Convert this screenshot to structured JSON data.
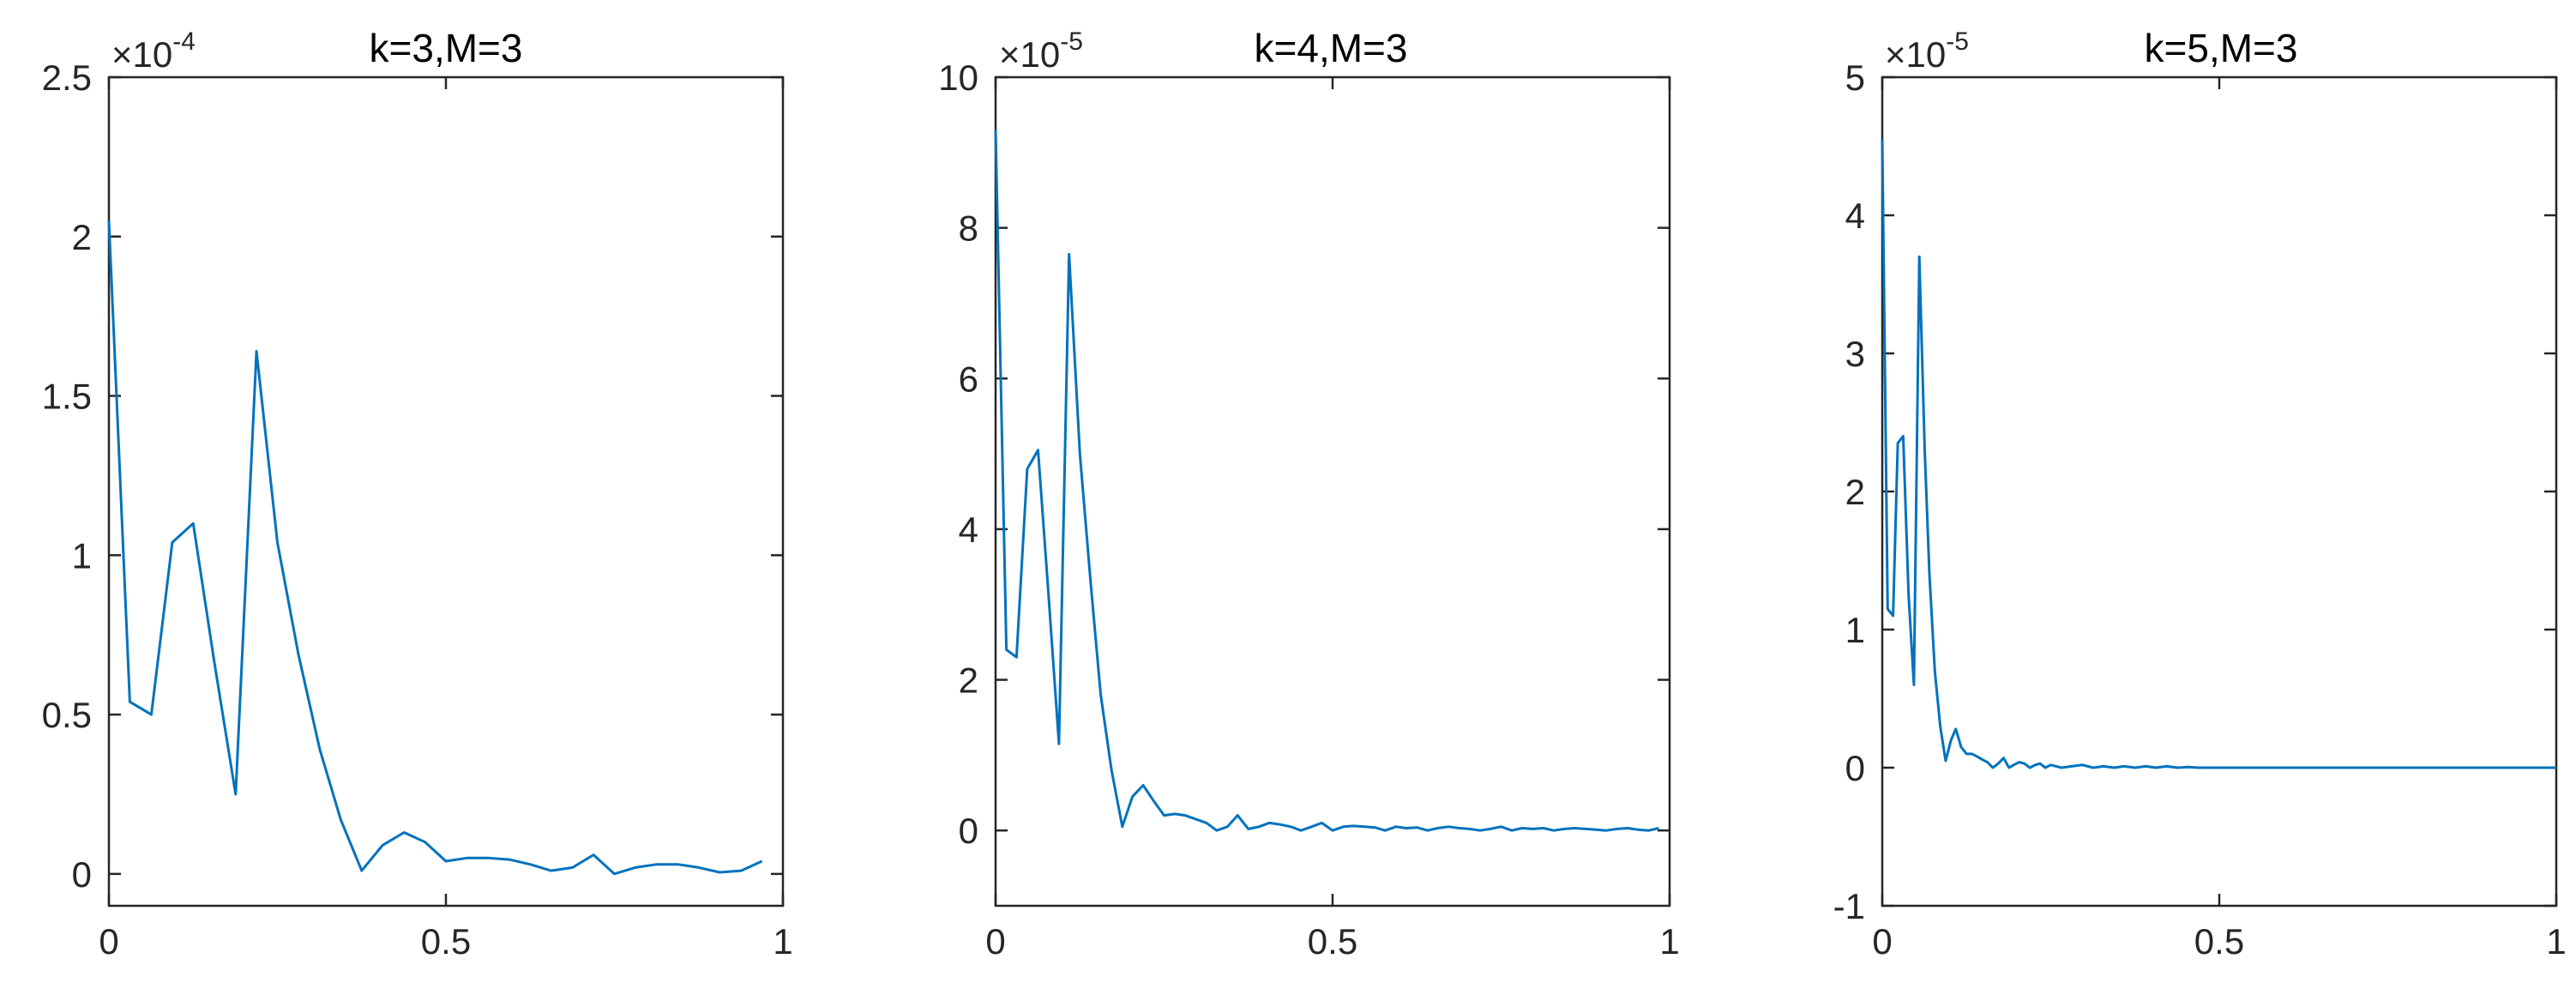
{
  "figure": {
    "background": "#ffffff",
    "axis_color": "#262626",
    "line_color": "#0072bd"
  },
  "chart_data": [
    {
      "type": "line",
      "title": "k=3,M=3",
      "exponent_label": "×10^-4",
      "exponent_base": "×10",
      "exponent_power": "-4",
      "xlim": [
        0,
        1
      ],
      "ylim": [
        -0.1,
        2.5
      ],
      "scale": 0.0001,
      "xticks": [
        0,
        0.5,
        1
      ],
      "xtick_labels": [
        "0",
        "0.5",
        "1"
      ],
      "yticks": [
        0,
        0.5,
        1,
        1.5,
        2,
        2.5
      ],
      "ytick_labels": [
        "0",
        "0.5",
        "1",
        "1.5",
        "2",
        "2.5"
      ],
      "grid": false,
      "legend": "none",
      "series": [
        {
          "x": [
            0,
            0.031,
            0.063,
            0.094,
            0.125,
            0.156,
            0.188,
            0.219,
            0.25,
            0.281,
            0.313,
            0.344,
            0.375,
            0.406,
            0.438,
            0.469,
            0.5,
            0.531,
            0.563,
            0.594,
            0.625,
            0.656,
            0.688,
            0.719,
            0.75,
            0.781,
            0.813,
            0.844,
            0.875,
            0.906,
            0.938,
            0.969
          ],
          "y": [
            2.05,
            0.54,
            0.5,
            1.04,
            1.1,
            0.67,
            0.25,
            1.64,
            1.04,
            0.69,
            0.39,
            0.17,
            0.01,
            0.09,
            0.13,
            0.1,
            0.04,
            0.05,
            0.05,
            0.045,
            0.03,
            0.01,
            0.02,
            0.06,
            0.0,
            0.02,
            0.03,
            0.03,
            0.02,
            0.005,
            0.01,
            0.04
          ]
        }
      ]
    },
    {
      "type": "line",
      "title": "k=4,M=3",
      "exponent_label": "×10^-5",
      "exponent_base": "×10",
      "exponent_power": "-5",
      "xlim": [
        0,
        1
      ],
      "ylim": [
        -1,
        10
      ],
      "scale": 1e-05,
      "xticks": [
        0,
        0.5,
        1
      ],
      "xtick_labels": [
        "0",
        "0.5",
        "1"
      ],
      "yticks": [
        0,
        2,
        4,
        6,
        8,
        10
      ],
      "ytick_labels": [
        "0",
        "2",
        "4",
        "6",
        "8",
        "10"
      ],
      "grid": false,
      "legend": "none",
      "series": [
        {
          "x": [
            0,
            0.016,
            0.031,
            0.047,
            0.063,
            0.078,
            0.094,
            0.109,
            0.125,
            0.141,
            0.156,
            0.172,
            0.188,
            0.203,
            0.219,
            0.234,
            0.25,
            0.266,
            0.281,
            0.297,
            0.313,
            0.328,
            0.344,
            0.359,
            0.375,
            0.391,
            0.406,
            0.422,
            0.438,
            0.453,
            0.469,
            0.484,
            0.5,
            0.516,
            0.531,
            0.547,
            0.563,
            0.578,
            0.594,
            0.609,
            0.625,
            0.641,
            0.656,
            0.672,
            0.688,
            0.703,
            0.719,
            0.734,
            0.75,
            0.766,
            0.781,
            0.797,
            0.813,
            0.828,
            0.844,
            0.859,
            0.875,
            0.891,
            0.906,
            0.922,
            0.938,
            0.953,
            0.969,
            0.984
          ],
          "y": [
            9.3,
            2.4,
            2.3,
            4.8,
            5.05,
            3.2,
            1.15,
            7.65,
            5.0,
            3.3,
            1.8,
            0.8,
            0.05,
            0.45,
            0.6,
            0.4,
            0.2,
            0.22,
            0.2,
            0.15,
            0.1,
            0.0,
            0.05,
            0.2,
            0.02,
            0.05,
            0.1,
            0.08,
            0.05,
            0.0,
            0.05,
            0.1,
            0.0,
            0.05,
            0.06,
            0.05,
            0.04,
            0.0,
            0.05,
            0.03,
            0.04,
            0.0,
            0.03,
            0.05,
            0.03,
            0.02,
            0.0,
            0.02,
            0.05,
            0.0,
            0.03,
            0.02,
            0.03,
            0.0,
            0.02,
            0.03,
            0.02,
            0.01,
            0.0,
            0.02,
            0.03,
            0.01,
            0.0,
            0.03
          ]
        }
      ]
    },
    {
      "type": "line",
      "title": "k=5,M=3",
      "exponent_label": "×10^-5",
      "exponent_base": "×10",
      "exponent_power": "-5",
      "xlim": [
        0,
        1
      ],
      "ylim": [
        -1,
        5
      ],
      "scale": 1e-05,
      "xticks": [
        0,
        0.5,
        1
      ],
      "xtick_labels": [
        "0",
        "0.5",
        "1"
      ],
      "yticks": [
        -1,
        0,
        1,
        2,
        3,
        4,
        5
      ],
      "ytick_labels": [
        "-1",
        "0",
        "1",
        "2",
        "3",
        "4",
        "5"
      ],
      "grid": false,
      "legend": "none",
      "series": [
        {
          "x": [
            0,
            0.008,
            0.016,
            0.023,
            0.031,
            0.039,
            0.047,
            0.055,
            0.063,
            0.07,
            0.078,
            0.086,
            0.094,
            0.102,
            0.109,
            0.117,
            0.125,
            0.133,
            0.141,
            0.148,
            0.156,
            0.164,
            0.172,
            0.18,
            0.188,
            0.195,
            0.203,
            0.211,
            0.219,
            0.227,
            0.234,
            0.242,
            0.25,
            0.266,
            0.281,
            0.297,
            0.313,
            0.328,
            0.344,
            0.359,
            0.375,
            0.391,
            0.406,
            0.422,
            0.438,
            0.453,
            0.469,
            0.5,
            0.55,
            0.6,
            0.65,
            0.7,
            0.75,
            0.8,
            0.85,
            0.9,
            0.95,
            1.0
          ],
          "y": [
            4.55,
            1.15,
            1.1,
            2.35,
            2.4,
            1.25,
            0.6,
            3.7,
            2.3,
            1.4,
            0.7,
            0.3,
            0.05,
            0.2,
            0.28,
            0.15,
            0.1,
            0.1,
            0.08,
            0.06,
            0.04,
            0.0,
            0.03,
            0.07,
            0.0,
            0.02,
            0.04,
            0.03,
            0.0,
            0.02,
            0.03,
            0.0,
            0.02,
            0.0,
            0.01,
            0.02,
            0.0,
            0.01,
            0.0,
            0.01,
            0.0,
            0.01,
            0.0,
            0.01,
            0.0,
            0.005,
            0.0,
            0.0,
            0.0,
            0.0,
            0.0,
            0.0,
            0.0,
            0.0,
            0.0,
            0.0,
            0.0,
            0.0
          ]
        }
      ]
    }
  ]
}
